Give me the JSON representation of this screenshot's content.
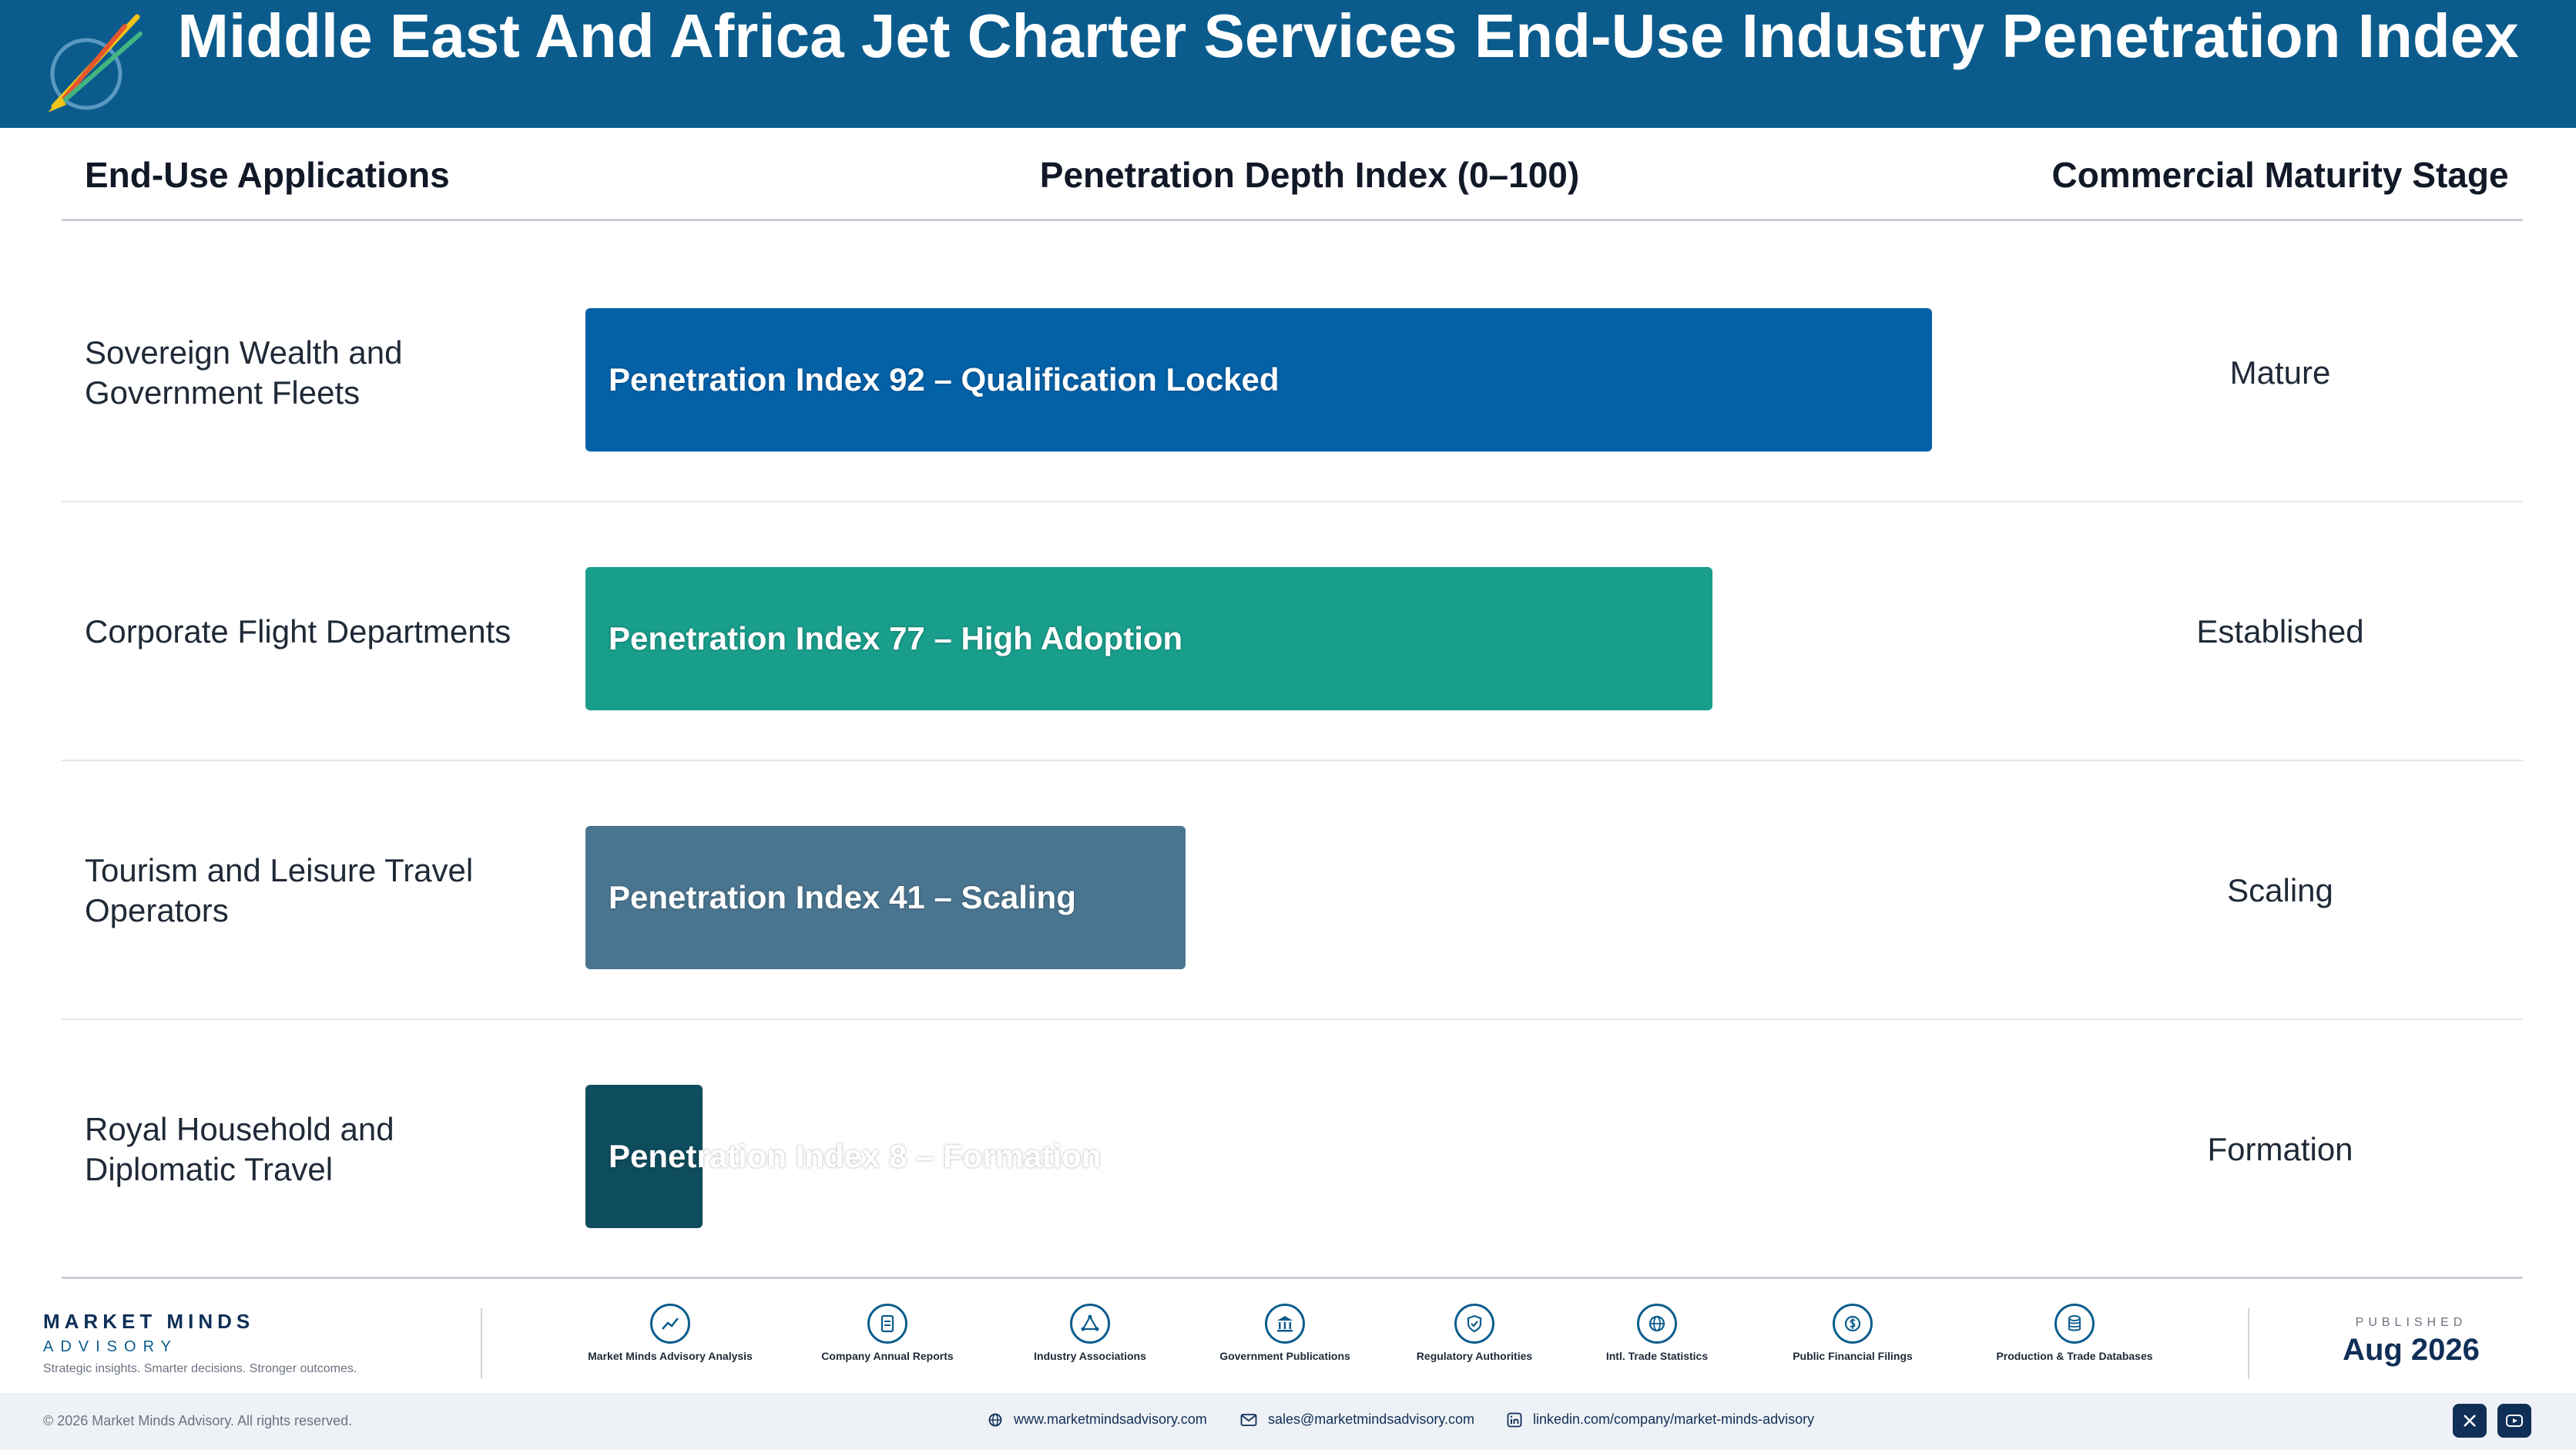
{
  "header": {
    "title": "Middle East And Africa Jet Charter Services End-Use Industry Penetration Index"
  },
  "columns": {
    "application": "End-Use Applications",
    "index": "Penetration Depth Index (0–100)",
    "stage": "Commercial Maturity Stage"
  },
  "chart_data": {
    "type": "bar",
    "orientation": "horizontal",
    "title": "Middle East And Africa Jet Charter Services End-Use Industry Penetration Index",
    "xlabel": "Penetration Depth Index (0–100)",
    "xlim": [
      0,
      100
    ],
    "categories": [
      "Sovereign Wealth and Government Fleets",
      "Corporate Flight Departments",
      "Tourism and Leisure Travel Operators",
      "Royal Household and Diplomatic Travel"
    ],
    "values": [
      92,
      77,
      41,
      8
    ],
    "bar_labels": [
      "Penetration Index 92 – Qualification Locked",
      "Penetration Index 77 – High Adoption",
      "Penetration Index 41 – Scaling",
      "Penetration Index 8 – Formation"
    ],
    "stages": [
      "Mature",
      "Established",
      "Scaling",
      "Formation"
    ],
    "colors": [
      "#0361a8",
      "#1a9e8c",
      "#4a7590",
      "#0e4d5e"
    ]
  },
  "footer": {
    "brand_name": "MARKET MINDS",
    "brand_sub": "ADVISORY",
    "tagline": "Strategic insights. Smarter decisions. Stronger outcomes.",
    "sources": [
      {
        "icon": "chart-line-icon",
        "label": "Market Minds Advisory Analysis"
      },
      {
        "icon": "document-icon",
        "label": "Company Annual Reports"
      },
      {
        "icon": "network-icon",
        "label": "Industry Associations"
      },
      {
        "icon": "government-building-icon",
        "label": "Government Publications"
      },
      {
        "icon": "shield-check-icon",
        "label": "Regulatory Authorities"
      },
      {
        "icon": "globe-icon",
        "label": "Intl. Trade Statistics"
      },
      {
        "icon": "dollar-coin-icon",
        "label": "Public Financial Filings"
      },
      {
        "icon": "database-icon",
        "label": "Production & Trade Databases"
      }
    ],
    "published_label": "PUBLISHED",
    "published_date": "Aug 2026",
    "copyright": "© 2026 Market Minds Advisory. All rights reserved.",
    "website": "www.marketmindsadvisory.com",
    "email": "sales@marketmindsadvisory.com",
    "linkedin": "linkedin.com/company/market-minds-advisory"
  }
}
